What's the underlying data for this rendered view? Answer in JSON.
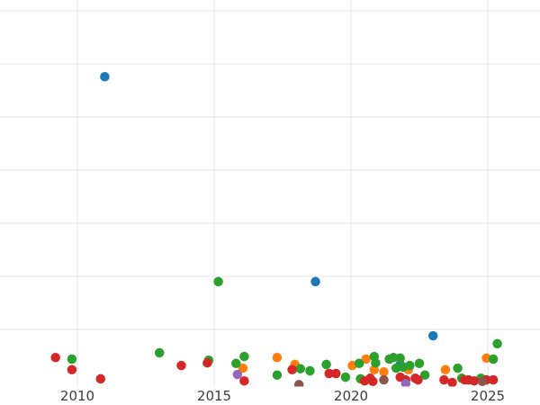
{
  "chart_data": {
    "type": "scatter",
    "title": "",
    "xlabel": "",
    "ylabel": "",
    "x_ticks": [
      "2010",
      "2015",
      "2020",
      "2025"
    ],
    "x_tick_years": [
      2010,
      2015,
      2020,
      2025
    ],
    "y_tick_labels": [],
    "y_gridline_values": [
      1,
      2,
      3,
      4,
      5,
      6,
      7
    ],
    "xlim": [
      2007.2,
      2026.9
    ],
    "ylim": [
      -0.09,
      7.2
    ],
    "grid": "on",
    "legend": "none",
    "colors": {
      "background": "#ffffff",
      "grid": "#e6e6e6",
      "tick_label": "#3d3d3d"
    },
    "series": [
      {
        "name": "blue",
        "color": "#1f77b4",
        "points": [
          [
            2011.0,
            5.76
          ],
          [
            2018.7,
            1.9
          ],
          [
            2021.8,
            0.34
          ],
          [
            2023.0,
            0.88
          ]
        ]
      },
      {
        "name": "orange",
        "color": "#ff7f0e",
        "points": [
          [
            2016.05,
            0.27
          ],
          [
            2017.3,
            0.47
          ],
          [
            2017.95,
            0.34
          ],
          [
            2020.05,
            0.32
          ],
          [
            2020.55,
            0.44
          ],
          [
            2020.85,
            0.24
          ],
          [
            2021.2,
            0.2
          ],
          [
            2022.1,
            0.24
          ],
          [
            2023.45,
            0.24
          ],
          [
            2024.95,
            0.46
          ]
        ]
      },
      {
        "name": "green",
        "color": "#2ca02c",
        "points": [
          [
            2009.8,
            0.44
          ],
          [
            2013.0,
            0.56
          ],
          [
            2014.8,
            0.42
          ],
          [
            2015.15,
            1.9
          ],
          [
            2015.8,
            0.36
          ],
          [
            2016.1,
            0.49
          ],
          [
            2017.3,
            0.14
          ],
          [
            2018.15,
            0.26
          ],
          [
            2018.5,
            0.22
          ],
          [
            2019.1,
            0.34
          ],
          [
            2019.8,
            0.1
          ],
          [
            2020.3,
            0.36
          ],
          [
            2020.35,
            0.07
          ],
          [
            2020.85,
            0.49
          ],
          [
            2020.9,
            0.37
          ],
          [
            2021.4,
            0.44
          ],
          [
            2021.55,
            0.47
          ],
          [
            2021.65,
            0.27
          ],
          [
            2021.8,
            0.46
          ],
          [
            2021.9,
            0.29
          ],
          [
            2022.15,
            0.32
          ],
          [
            2022.5,
            0.36
          ],
          [
            2022.7,
            0.14
          ],
          [
            2023.9,
            0.27
          ],
          [
            2024.05,
            0.08
          ],
          [
            2024.75,
            0.08
          ],
          [
            2025.2,
            0.44
          ],
          [
            2025.35,
            0.73
          ]
        ]
      },
      {
        "name": "red",
        "color": "#d62728",
        "points": [
          [
            2009.2,
            0.47
          ],
          [
            2009.8,
            0.24
          ],
          [
            2010.85,
            0.07
          ],
          [
            2013.8,
            0.32
          ],
          [
            2014.75,
            0.37
          ],
          [
            2016.1,
            0.03
          ],
          [
            2017.85,
            0.24
          ],
          [
            2019.2,
            0.17
          ],
          [
            2019.45,
            0.17
          ],
          [
            2020.5,
            0.03
          ],
          [
            2020.7,
            0.08
          ],
          [
            2020.8,
            0.02
          ],
          [
            2021.8,
            0.1
          ],
          [
            2022.0,
            0.05
          ],
          [
            2022.35,
            0.08
          ],
          [
            2022.45,
            0.05
          ],
          [
            2023.4,
            0.05
          ],
          [
            2023.7,
            0.0
          ],
          [
            2024.15,
            0.05
          ],
          [
            2024.3,
            0.05
          ],
          [
            2024.5,
            0.03
          ],
          [
            2024.95,
            0.05
          ],
          [
            2025.2,
            0.05
          ]
        ]
      },
      {
        "name": "purple",
        "color": "#9467bd",
        "points": [
          [
            2015.85,
            0.15
          ],
          [
            2022.0,
            -0.02
          ]
        ]
      },
      {
        "name": "brown",
        "color": "#8c564b",
        "points": [
          [
            2018.1,
            -0.04
          ],
          [
            2021.2,
            0.05
          ],
          [
            2024.8,
            0.02
          ]
        ]
      }
    ]
  }
}
